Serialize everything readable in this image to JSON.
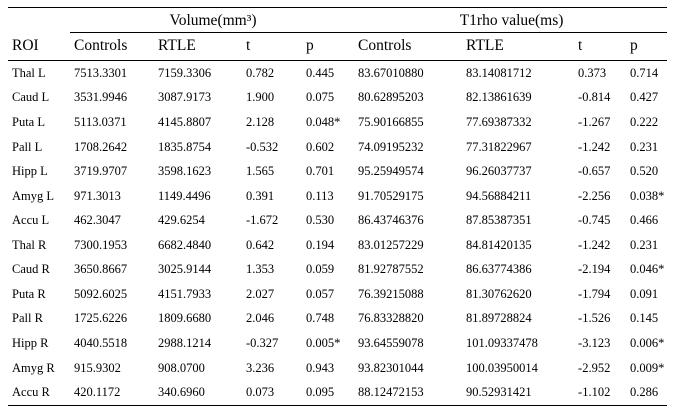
{
  "table": {
    "group_headers": [
      {
        "label": "",
        "colspan": 1
      },
      {
        "label": "Volume(mm³)",
        "colspan": 4
      },
      {
        "label": "T1rho value(ms)",
        "colspan": 4
      }
    ],
    "column_headers": [
      "ROI",
      "Controls",
      "RTLE",
      "t",
      "p",
      "Controls",
      "RTLE",
      "t",
      "p"
    ],
    "rows": [
      [
        "Thal L",
        "7513.3301",
        "7159.3306",
        "0.782",
        "0.445",
        "83.67010880",
        "83.14081712",
        "0.373",
        "0.714"
      ],
      [
        "Caud L",
        "3531.9946",
        "3087.9173",
        "1.900",
        "0.075",
        "80.62895203",
        "82.13861639",
        "-0.814",
        "0.427"
      ],
      [
        "Puta L",
        "5113.0371",
        "4145.8807",
        "2.128",
        "0.048*",
        "75.90166855",
        "77.69387332",
        "-1.267",
        "0.222"
      ],
      [
        "Pall L",
        "1708.2642",
        "1835.8754",
        "-0.532",
        "0.602",
        "74.09195232",
        "77.31822967",
        "-1.242",
        "0.231"
      ],
      [
        "Hipp L",
        "3719.9707",
        "3598.1623",
        "1.565",
        "0.701",
        "95.25949574",
        "96.26037737",
        "-0.657",
        "0.520"
      ],
      [
        "Amyg L",
        "971.3013",
        "1149.4496",
        "0.391",
        "0.113",
        "91.70529175",
        "94.56884211",
        "-2.256",
        "0.038*"
      ],
      [
        "Accu L",
        "462.3047",
        "429.6254",
        "-1.672",
        "0.530",
        "86.43746376",
        "87.85387351",
        "-0.745",
        "0.466"
      ],
      [
        "Thal R",
        "7300.1953",
        "6682.4840",
        "0.642",
        "0.194",
        "83.01257229",
        "84.81420135",
        "-1.242",
        "0.231"
      ],
      [
        "Caud R",
        "3650.8667",
        "3025.9144",
        "1.353",
        "0.059",
        "81.92787552",
        "86.63774386",
        "-2.194",
        "0.046*"
      ],
      [
        "Puta R",
        "5092.6025",
        "4151.7933",
        "2.027",
        "0.057",
        "76.39215088",
        "81.30762620",
        "-1.794",
        "0.091"
      ],
      [
        "Pall R",
        "1725.6226",
        "1809.6680",
        "2.046",
        "0.748",
        "76.83328820",
        "81.89728824",
        "-1.526",
        "0.145"
      ],
      [
        "Hipp R",
        "4040.5518",
        "2988.1214",
        "-0.327",
        "0.005*",
        "93.64559078",
        "101.09337478",
        "-3.123",
        "0.006*"
      ],
      [
        "Amyg R",
        "915.9302",
        "908.0700",
        "3.236",
        "0.943",
        "93.82301044",
        "100.03950014",
        "-2.952",
        "0.009*"
      ],
      [
        "Accu R",
        "420.1172",
        "340.6960",
        "0.073",
        "0.095",
        "88.12472153",
        "90.52931421",
        "-1.102",
        "0.286"
      ]
    ]
  }
}
